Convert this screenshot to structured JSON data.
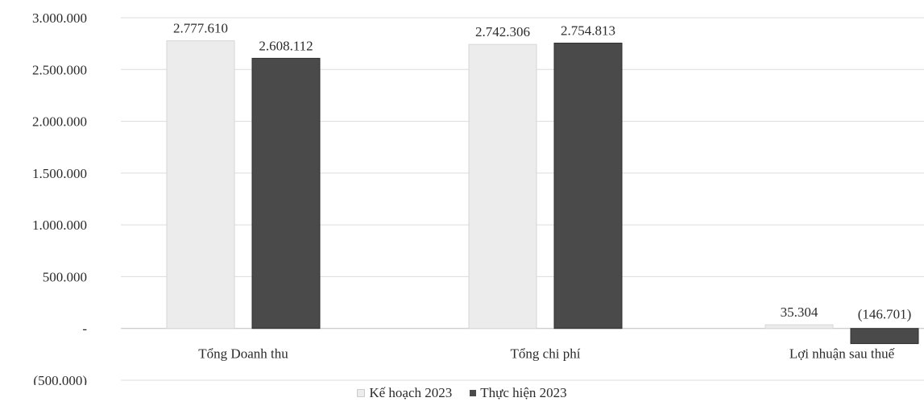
{
  "chart_data": {
    "type": "bar",
    "categories": [
      "Tổng Doanh thu",
      "Tổng chi phí",
      "Lợi nhuận sau thuế"
    ],
    "series": [
      {
        "name": "Kế hoạch 2023",
        "values": [
          2777610,
          2742306,
          35304
        ],
        "labels": [
          "2.777.610",
          "2.742.306",
          "35.304"
        ],
        "color": "#ececec"
      },
      {
        "name": "Thực hiện 2023",
        "values": [
          2608112,
          2754813,
          -146701
        ],
        "labels": [
          "2.608.112",
          "2.754.813",
          "(146.701)"
        ],
        "color": "#4a4a4a"
      }
    ],
    "y_ticks": [
      3000000,
      2500000,
      2000000,
      1500000,
      1000000,
      500000,
      0,
      -500000
    ],
    "y_tick_labels": [
      "3.000.000",
      "2.500.000",
      "2.000.000",
      "1.500.000",
      "1.000.000",
      "500.000",
      "-",
      "(500.000)"
    ],
    "ylim": [
      -500000,
      3000000
    ],
    "grid": true,
    "legend_position": "bottom"
  }
}
